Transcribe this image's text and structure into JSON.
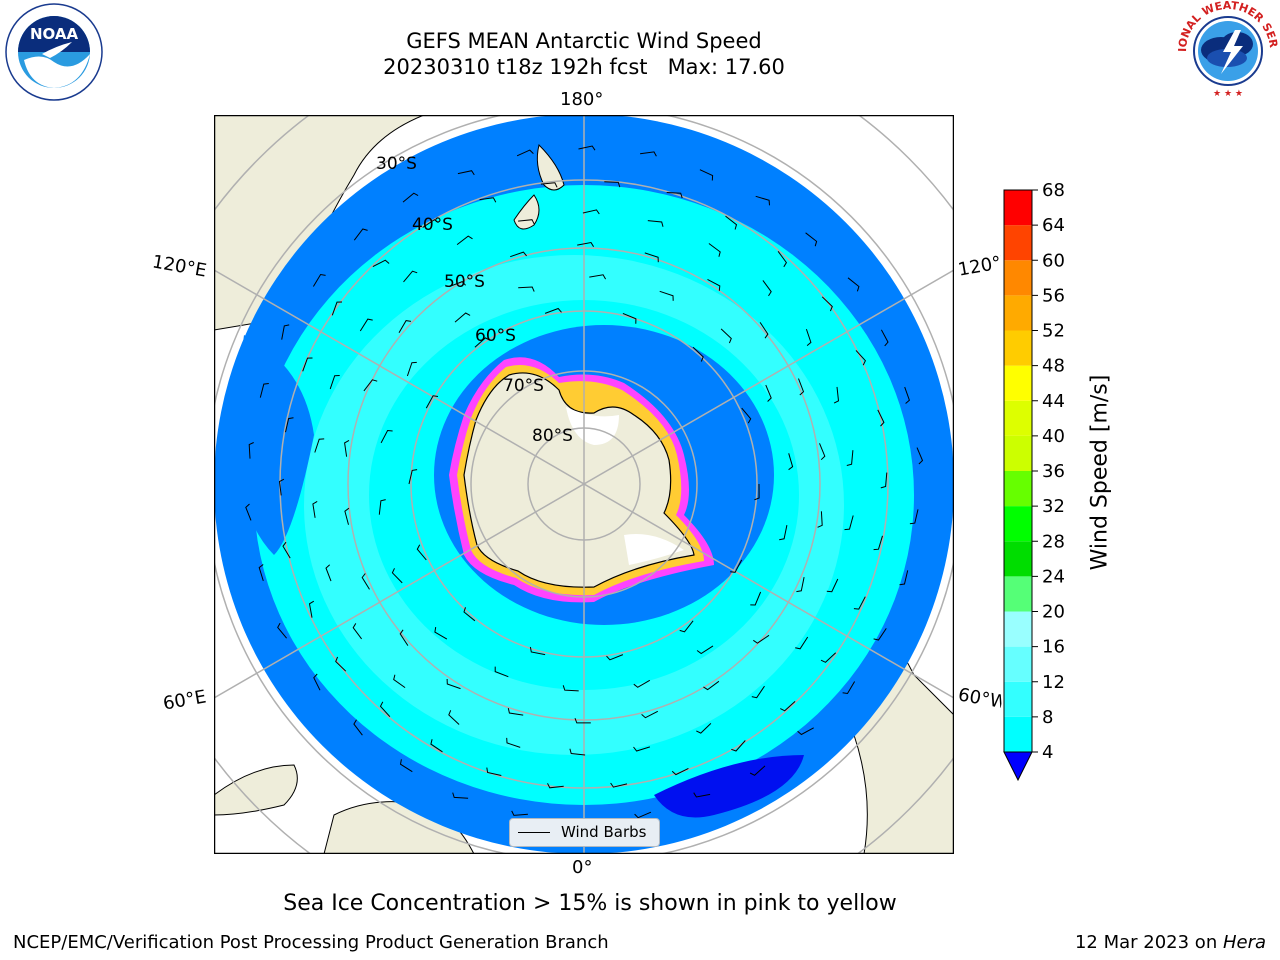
{
  "header": {
    "title_line1": "GEFS MEAN Antarctic Wind Speed",
    "title_line2": "20230310 t18z 192h fcst   Max: 17.60"
  },
  "logos": {
    "left_org": "NOAA",
    "left_ring_text": "NATIONAL OCEANIC AND ATMOSPHERIC ADMINISTRATION · U.S. DEPARTMENT OF COMMERCE",
    "right_ring_text": "NATIONAL WEATHER SERVICE"
  },
  "map": {
    "projection": "south-polar-stereographic",
    "longitude_labels": {
      "top": "180°",
      "bottom": "0°",
      "upper_left": "120°E",
      "lower_left": "60°E",
      "upper_right": "120°W",
      "lower_right": "60°W"
    },
    "latitude_labels": [
      "30°S",
      "40°S",
      "50°S",
      "60°S",
      "70°S",
      "80°S"
    ],
    "legend_label": "Wind Barbs",
    "colors": {
      "ocean_4_8": "#0080ff",
      "ocean_8_12": "#00ffff",
      "ocean_12_16": "#33ffff",
      "ocean_lowest": "#0010f0",
      "land": "#eeedda",
      "ice_edge_pink": "#ff33ff",
      "ice_edge_yellow": "#ffcc33"
    }
  },
  "colorbar": {
    "label": "Wind Speed [m/s]",
    "ticks": [
      "4",
      "8",
      "12",
      "16",
      "20",
      "24",
      "28",
      "32",
      "36",
      "40",
      "44",
      "48",
      "52",
      "56",
      "60",
      "64",
      "68"
    ],
    "segment_colors": [
      "#0080ff",
      "#00ffff",
      "#33ffff",
      "#66ffff",
      "#99ffff",
      "#55ff77",
      "#00dd00",
      "#00ff00",
      "#66ff00",
      "#ccff00",
      "#ddff00",
      "#ffff00",
      "#ffcc00",
      "#ffaa00",
      "#ff8800",
      "#ff4400",
      "#ff0000"
    ],
    "extend_color": "#0000ff"
  },
  "caption": "Sea Ice Concentration > 15% is shown in pink to yellow",
  "footer": {
    "left": "NCEP/EMC/Verification Post Processing Product Generation Branch",
    "right_date": "12 Mar 2023 on ",
    "right_host": "Hera"
  }
}
